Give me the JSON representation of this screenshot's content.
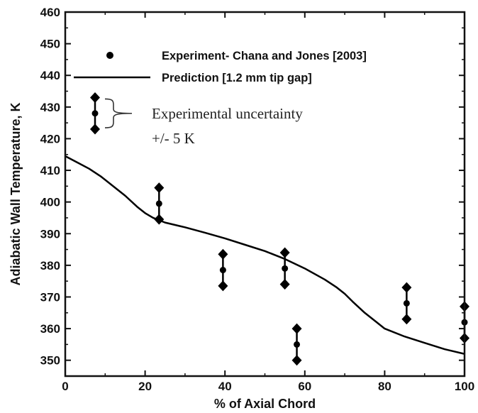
{
  "chart_data": {
    "type": "scatter",
    "xlabel": "% of Axial Chord",
    "ylabel": "Adiabatic Wall Temperature, K",
    "xlim": [
      0,
      100
    ],
    "ylim": [
      345,
      460
    ],
    "x_ticks": [
      0,
      20,
      40,
      60,
      80,
      100
    ],
    "y_ticks": [
      350,
      360,
      370,
      380,
      390,
      400,
      410,
      420,
      430,
      440,
      450,
      460
    ],
    "grid": false,
    "legend": {
      "position": "top-right",
      "entries": [
        {
          "label": "Experiment- Chana and Jones [2003]",
          "marker": "circle"
        },
        {
          "label": "Prediction [1.2 mm tip gap]",
          "marker": "line"
        }
      ]
    },
    "annotation": {
      "line1": "Experimental uncertainty",
      "line2": "+/- 5 K",
      "example_center": 428
    },
    "series": [
      {
        "name": "Experiment- Chana and Jones [2003]",
        "kind": "points_with_error",
        "uncertainty": 5,
        "x": [
          23.5,
          39.5,
          55,
          58,
          85.5,
          100
        ],
        "y": [
          399.5,
          378.5,
          379,
          355,
          368,
          362
        ]
      },
      {
        "name": "Prediction [1.2 mm tip gap]",
        "kind": "line",
        "x": [
          0,
          3,
          6,
          9,
          12,
          15,
          18,
          20,
          22,
          25,
          30,
          35,
          40,
          45,
          50,
          55,
          60,
          65,
          68,
          70,
          72,
          75,
          78,
          80,
          85,
          90,
          95,
          100
        ],
        "y": [
          414.5,
          412.5,
          410.5,
          408,
          405,
          402,
          398.5,
          396.5,
          395,
          393.5,
          392,
          390.3,
          388.5,
          386.5,
          384.5,
          382,
          379,
          375.5,
          373,
          371,
          368.5,
          365,
          362,
          360,
          357.5,
          355.5,
          353.5,
          352
        ]
      }
    ]
  }
}
